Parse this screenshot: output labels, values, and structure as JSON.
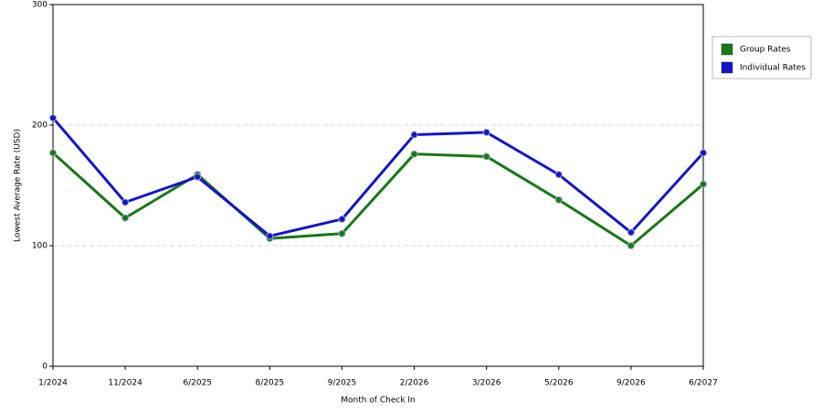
{
  "chart_data": {
    "type": "line",
    "x_label": "Month of Check In",
    "y_label": "Lowest Average Rate (USD)",
    "categories": [
      "1/2024",
      "11/2024",
      "6/2025",
      "8/2025",
      "9/2025",
      "2/2026",
      "3/2026",
      "5/2026",
      "9/2026",
      "6/2027"
    ],
    "series": [
      {
        "name": "Group Rates",
        "color": "#177817",
        "values": [
          177,
          123,
          159,
          106,
          110,
          176,
          174,
          138,
          100,
          151
        ]
      },
      {
        "name": "Individual Rates",
        "color": "#1414c8",
        "values": [
          206,
          136,
          157,
          108,
          122,
          192,
          194,
          159,
          111,
          177
        ]
      }
    ],
    "ylim": [
      0,
      300
    ],
    "yticks": [
      0,
      100,
      200,
      300
    ],
    "grid": true,
    "legend": "right"
  }
}
